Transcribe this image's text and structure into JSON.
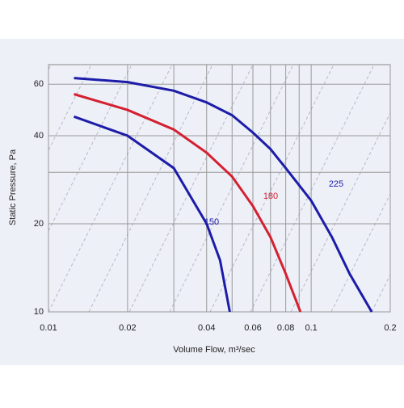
{
  "chart_data": {
    "type": "line",
    "xlabel": "Volume Flow, m³/sec",
    "ylabel": "Static Pressure, Pa",
    "xscale": "log",
    "yscale": "log",
    "grid": true,
    "xlim": [
      0.01,
      0.2
    ],
    "ylim": [
      10,
      70
    ],
    "xticks": [
      0.01,
      0.02,
      0.04,
      0.06,
      0.08,
      0.1,
      0.2
    ],
    "yticks": [
      10,
      20,
      40,
      60
    ],
    "x_minor_grid": [
      0.03,
      0.05,
      0.07,
      0.09
    ],
    "y_minor_grid": [
      30
    ],
    "series": [
      {
        "name": "150",
        "color": "#1c1ca8",
        "x": [
          0.0125,
          0.02,
          0.03,
          0.04,
          0.045,
          0.049
        ],
        "values": [
          46.5,
          40,
          31,
          20,
          15,
          10
        ]
      },
      {
        "name": "180",
        "color": "#d42030",
        "x": [
          0.0125,
          0.02,
          0.03,
          0.04,
          0.05,
          0.06,
          0.07,
          0.08,
          0.091
        ],
        "values": [
          55.5,
          49,
          42,
          35,
          29,
          23,
          18,
          13.5,
          10
        ]
      },
      {
        "name": "225",
        "color": "#1c1ca8",
        "x": [
          0.0125,
          0.02,
          0.03,
          0.04,
          0.05,
          0.06,
          0.07,
          0.08,
          0.1,
          0.12,
          0.14,
          0.17
        ],
        "values": [
          63,
          61,
          57,
          52,
          47,
          41,
          36,
          31,
          24,
          18,
          13.5,
          10
        ]
      }
    ]
  }
}
